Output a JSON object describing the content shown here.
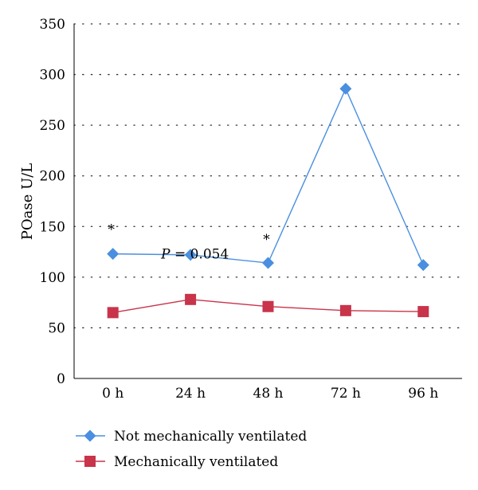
{
  "chart_data": {
    "type": "line",
    "title": "",
    "xlabel": "",
    "ylabel": "POase U/L",
    "categories": [
      "0 h",
      "24 h",
      "48 h",
      "72 h",
      "96 h"
    ],
    "ylim": [
      0,
      350
    ],
    "yticks": [
      0,
      50,
      100,
      150,
      200,
      250,
      300,
      350
    ],
    "grid": "horizontal dotted",
    "legend_position": "bottom-left",
    "series": [
      {
        "name": "Not mechanically ventilated",
        "values": [
          123,
          122,
          114,
          286,
          112
        ],
        "color": "#4a8fe0",
        "marker": "diamond"
      },
      {
        "name": "Mechanically ventilated",
        "values": [
          65,
          78,
          71,
          67,
          66
        ],
        "color": "#c8344a",
        "marker": "square"
      }
    ],
    "annotations": [
      {
        "text": "*",
        "category": "0 h",
        "y": 150
      },
      {
        "text": "*",
        "category": "48 h",
        "y": 140
      },
      {
        "text_italic": "P",
        "text": " = 0.054",
        "category": "24 h",
        "y": 123
      }
    ]
  }
}
